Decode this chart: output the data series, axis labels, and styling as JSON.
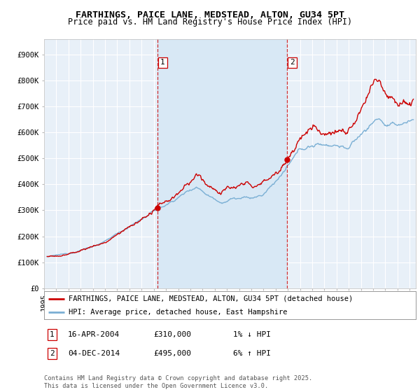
{
  "title": "FARTHINGS, PAICE LANE, MEDSTEAD, ALTON, GU34 5PT",
  "subtitle": "Price paid vs. HM Land Registry's House Price Index (HPI)",
  "ylabel_ticks": [
    "£0",
    "£100K",
    "£200K",
    "£300K",
    "£400K",
    "£500K",
    "£600K",
    "£700K",
    "£800K",
    "£900K"
  ],
  "ytick_values": [
    0,
    100000,
    200000,
    300000,
    400000,
    500000,
    600000,
    700000,
    800000,
    900000
  ],
  "ylim": [
    0,
    960000
  ],
  "xlim_start": 1995.0,
  "xlim_end": 2025.5,
  "sale1_date": 2004.29,
  "sale1_price": 310000,
  "sale2_date": 2014.92,
  "sale2_price": 495000,
  "line_color_red": "#cc0000",
  "line_color_blue": "#7aafd4",
  "vline_color": "#cc0000",
  "shade_color": "#d8e8f5",
  "background_plot": "#e8f0f8",
  "background_fig": "#ffffff",
  "grid_color": "#ffffff",
  "legend1": "FARTHINGS, PAICE LANE, MEDSTEAD, ALTON, GU34 5PT (detached house)",
  "legend2": "HPI: Average price, detached house, East Hampshire",
  "annotation1_date": "16-APR-2004",
  "annotation1_price": "£310,000",
  "annotation1_hpi": "1% ↓ HPI",
  "annotation2_date": "04-DEC-2014",
  "annotation2_price": "£495,000",
  "annotation2_hpi": "6% ↑ HPI",
  "footer": "Contains HM Land Registry data © Crown copyright and database right 2025.\nThis data is licensed under the Open Government Licence v3.0.",
  "title_fontsize": 9.5,
  "subtitle_fontsize": 8.5,
  "tick_fontsize": 7.5,
  "legend_fontsize": 7.5,
  "annot_fontsize": 8
}
